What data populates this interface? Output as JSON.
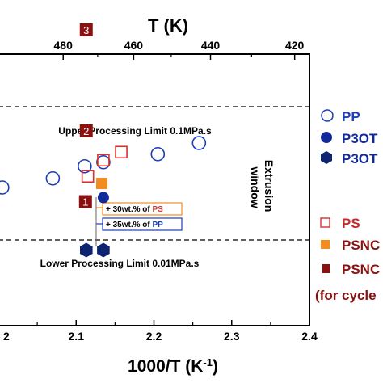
{
  "chart_data": {
    "type": "scatter",
    "xlabel": "1000/T (K",
    "xlabel_sup": "-1",
    "xlabel_close": ")",
    "top_label": "T (K)",
    "xlim": [
      2.0,
      2.4
    ],
    "xticks": [
      "2.1",
      "2.2",
      "2.3",
      "2.4"
    ],
    "xtick_partial": "2",
    "top_ticks": [
      "480",
      "460",
      "440",
      "420"
    ],
    "top_tick_values": [
      480,
      460,
      440,
      420
    ],
    "series": [
      {
        "name": "PP",
        "marker": "open-circle",
        "color": "#1a3eb8",
        "x": [
          2.005,
          2.07,
          2.111,
          2.135,
          2.205,
          2.258
        ],
        "y": [
          0.0,
          0.45,
          1.05,
          1.25,
          1.65,
          2.2
        ]
      },
      {
        "name": "P3OT",
        "marker": "filled-circle",
        "color": "#102a9a",
        "x": [
          2.135
        ],
        "y": [
          -0.5
        ]
      },
      {
        "name": "P3OT",
        "marker": "filled-hexagon",
        "color": "#0d2570",
        "x": [
          2.113,
          2.135
        ],
        "y": [
          -3.1,
          -3.1
        ]
      },
      {
        "name": "PS",
        "marker": "open-square",
        "color": "#d8302e",
        "x": [
          2.115,
          2.135,
          2.158
        ],
        "y": [
          0.55,
          1.35,
          1.75
        ]
      },
      {
        "name": "PSNC",
        "marker": "filled-square",
        "color": "#f28c1e",
        "x": [
          2.133
        ],
        "y": [
          0.2
        ]
      },
      {
        "name": "PSNC",
        "marker": "numbered-square",
        "color": "#8b1111",
        "x": [
          2.112,
          2.113,
          2.113
        ],
        "y": [
          -0.7,
          2.8,
          7.8
        ],
        "labels": [
          "1",
          "2",
          "3"
        ]
      }
    ],
    "limits": [
      {
        "label": "Upper Processing Limit 0.1MPa.s",
        "y": 4.0
      },
      {
        "label": "Lower Processing Limit 0.01MPa.s",
        "y": -2.6
      }
    ],
    "window_label": [
      "Extrusion",
      "window"
    ],
    "annotations": [
      {
        "text": "+ 30wt.% of ",
        "highlight": "PS",
        "color": "#d8302e",
        "border": "#f28c1e"
      },
      {
        "text": "+ 35wt.% of ",
        "highlight": "PP",
        "color": "#1a3eb8",
        "border": "#1a3eb8"
      }
    ],
    "legend": {
      "placement": "right",
      "entries": [
        "PP",
        "P3OT",
        "P3OT",
        "PS",
        "PSNC",
        "PSNC"
      ],
      "note": "(for cycle"
    }
  }
}
